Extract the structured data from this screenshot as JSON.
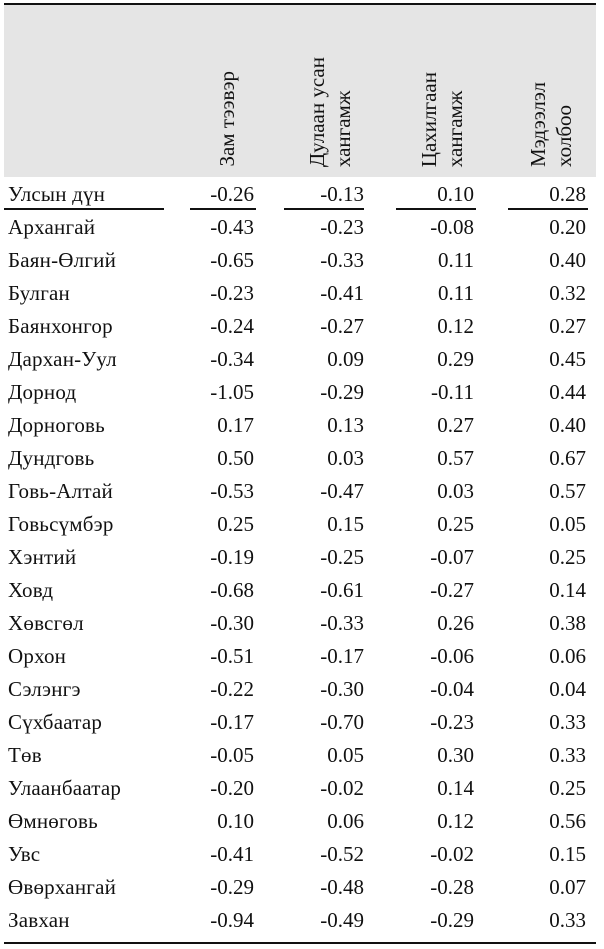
{
  "table": {
    "columns": [
      "Зам тээвэр",
      "Дулаан усан\nхангамж",
      "Цахилгаан\nхангамж",
      "Мэдээлэл\nхолбоо"
    ],
    "total_row": {
      "name": "Улсын дүн",
      "values": [
        "-0.26",
        "-0.13",
        "0.10",
        "0.28"
      ]
    },
    "rows": [
      {
        "name": "Архангай",
        "values": [
          "-0.43",
          "-0.23",
          "-0.08",
          "0.20"
        ]
      },
      {
        "name": "Баян-Өлгий",
        "values": [
          "-0.65",
          "-0.33",
          "0.11",
          "0.40"
        ]
      },
      {
        "name": "Булган",
        "values": [
          "-0.23",
          "-0.41",
          "0.11",
          "0.32"
        ]
      },
      {
        "name": "Баянхонгор",
        "values": [
          "-0.24",
          "-0.27",
          "0.12",
          "0.27"
        ]
      },
      {
        "name": "Дархан-Уул",
        "values": [
          "-0.34",
          "0.09",
          "0.29",
          "0.45"
        ]
      },
      {
        "name": "Дорнод",
        "values": [
          "-1.05",
          "-0.29",
          "-0.11",
          "0.44"
        ]
      },
      {
        "name": "Дорноговь",
        "values": [
          "0.17",
          "0.13",
          "0.27",
          "0.40"
        ]
      },
      {
        "name": "Дундговь",
        "values": [
          "0.50",
          "0.03",
          "0.57",
          "0.67"
        ]
      },
      {
        "name": "Говь-Алтай",
        "values": [
          "-0.53",
          "-0.47",
          "0.03",
          "0.57"
        ]
      },
      {
        "name": "Говьсүмбэр",
        "values": [
          "0.25",
          "0.15",
          "0.25",
          "0.05"
        ]
      },
      {
        "name": "Хэнтий",
        "values": [
          "-0.19",
          "-0.25",
          "-0.07",
          "0.25"
        ]
      },
      {
        "name": "Ховд",
        "values": [
          "-0.68",
          "-0.61",
          "-0.27",
          "0.14"
        ]
      },
      {
        "name": "Хөвсгөл",
        "values": [
          "-0.30",
          "-0.33",
          "0.26",
          "0.38"
        ]
      },
      {
        "name": "Орхон",
        "values": [
          "-0.51",
          "-0.17",
          "-0.06",
          "0.06"
        ]
      },
      {
        "name": "Сэлэнгэ",
        "values": [
          "-0.22",
          "-0.30",
          "-0.04",
          "0.04"
        ]
      },
      {
        "name": "Сүхбаатар",
        "values": [
          "-0.17",
          "-0.70",
          "-0.23",
          "0.33"
        ]
      },
      {
        "name": "Төв",
        "values": [
          "-0.05",
          "0.05",
          "0.30",
          "0.33"
        ]
      },
      {
        "name": "Улаанбаатар",
        "values": [
          "-0.20",
          "-0.02",
          "0.14",
          "0.25"
        ]
      },
      {
        "name": "Өмнөговь",
        "values": [
          "0.10",
          "0.06",
          "0.12",
          "0.56"
        ]
      },
      {
        "name": "Увс",
        "values": [
          "-0.41",
          "-0.52",
          "-0.02",
          "0.15"
        ]
      },
      {
        "name": "Өвөрхангай",
        "values": [
          "-0.29",
          "-0.48",
          "-0.28",
          "0.07"
        ]
      },
      {
        "name": "Завхан",
        "values": [
          "-0.94",
          "-0.49",
          "-0.29",
          "0.33"
        ]
      }
    ]
  }
}
